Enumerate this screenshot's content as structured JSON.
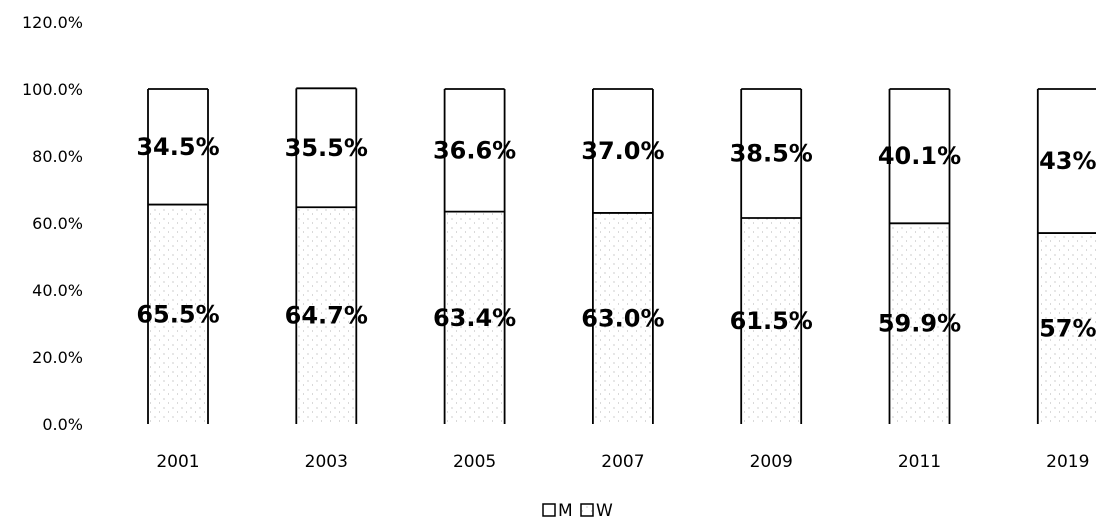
{
  "chart_data": {
    "type": "bar",
    "stacked": true,
    "categories": [
      "2001",
      "2003",
      "2005",
      "2007",
      "2009",
      "2011",
      "2019"
    ],
    "series": [
      {
        "name": "M",
        "values": [
          65.5,
          64.7,
          63.4,
          63.0,
          61.5,
          59.9,
          57
        ],
        "labels": [
          "65.5%",
          "64.7%",
          "63.4%",
          "63.0%",
          "61.5%",
          "59.9%",
          "57%"
        ]
      },
      {
        "name": "W",
        "values": [
          34.5,
          35.5,
          36.6,
          37.0,
          38.5,
          40.1,
          43
        ],
        "labels": [
          "34.5%",
          "35.5%",
          "36.6%",
          "37.0%",
          "38.5%",
          "40.1%",
          "43%"
        ]
      }
    ],
    "yticks": [
      "0.0%",
      "20.0%",
      "40.0%",
      "60.0%",
      "80.0%",
      "100.0%",
      "120.0%"
    ],
    "ylim": [
      0,
      120
    ],
    "grid": false,
    "legend": "bottom-center"
  }
}
